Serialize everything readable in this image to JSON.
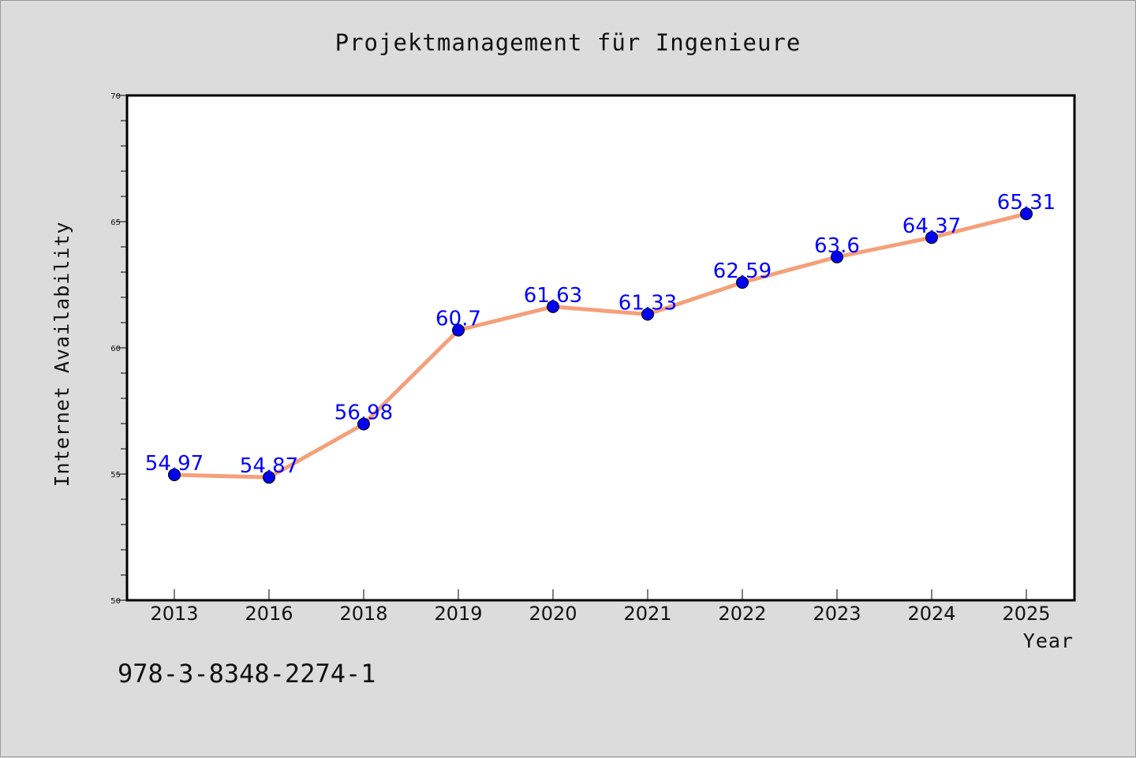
{
  "chart_data": {
    "type": "line",
    "title": "Projektmanagement für Ingenieure",
    "xlabel": "Year",
    "ylabel": "Internet Availability",
    "categories": [
      "2013",
      "2016",
      "2018",
      "2019",
      "2020",
      "2021",
      "2022",
      "2023",
      "2024",
      "2025"
    ],
    "series": [
      {
        "values": [
          54.97,
          54.87,
          56.98,
          60.7,
          61.63,
          61.33,
          62.59,
          63.6,
          64.37,
          65.31
        ],
        "data_labels": [
          "54.97",
          "54.87",
          "56.98",
          "60.7",
          "61.63",
          "61.33",
          "62.59",
          "63.6",
          "64.37",
          "65.31"
        ],
        "line_color": "#f5a07a",
        "marker_color": "#0000ee",
        "label_color": "#0000ff"
      }
    ],
    "ylim": [
      50,
      70
    ],
    "yticks": [
      "50",
      "55",
      "60",
      "65",
      "70"
    ],
    "grid": false,
    "legend": "none"
  },
  "annotation": {
    "isbn": "978-3-8348-2274-1"
  },
  "colors": {
    "background": "#dcdcdc",
    "plot_background": "#ffffff",
    "axis": "#000000"
  }
}
